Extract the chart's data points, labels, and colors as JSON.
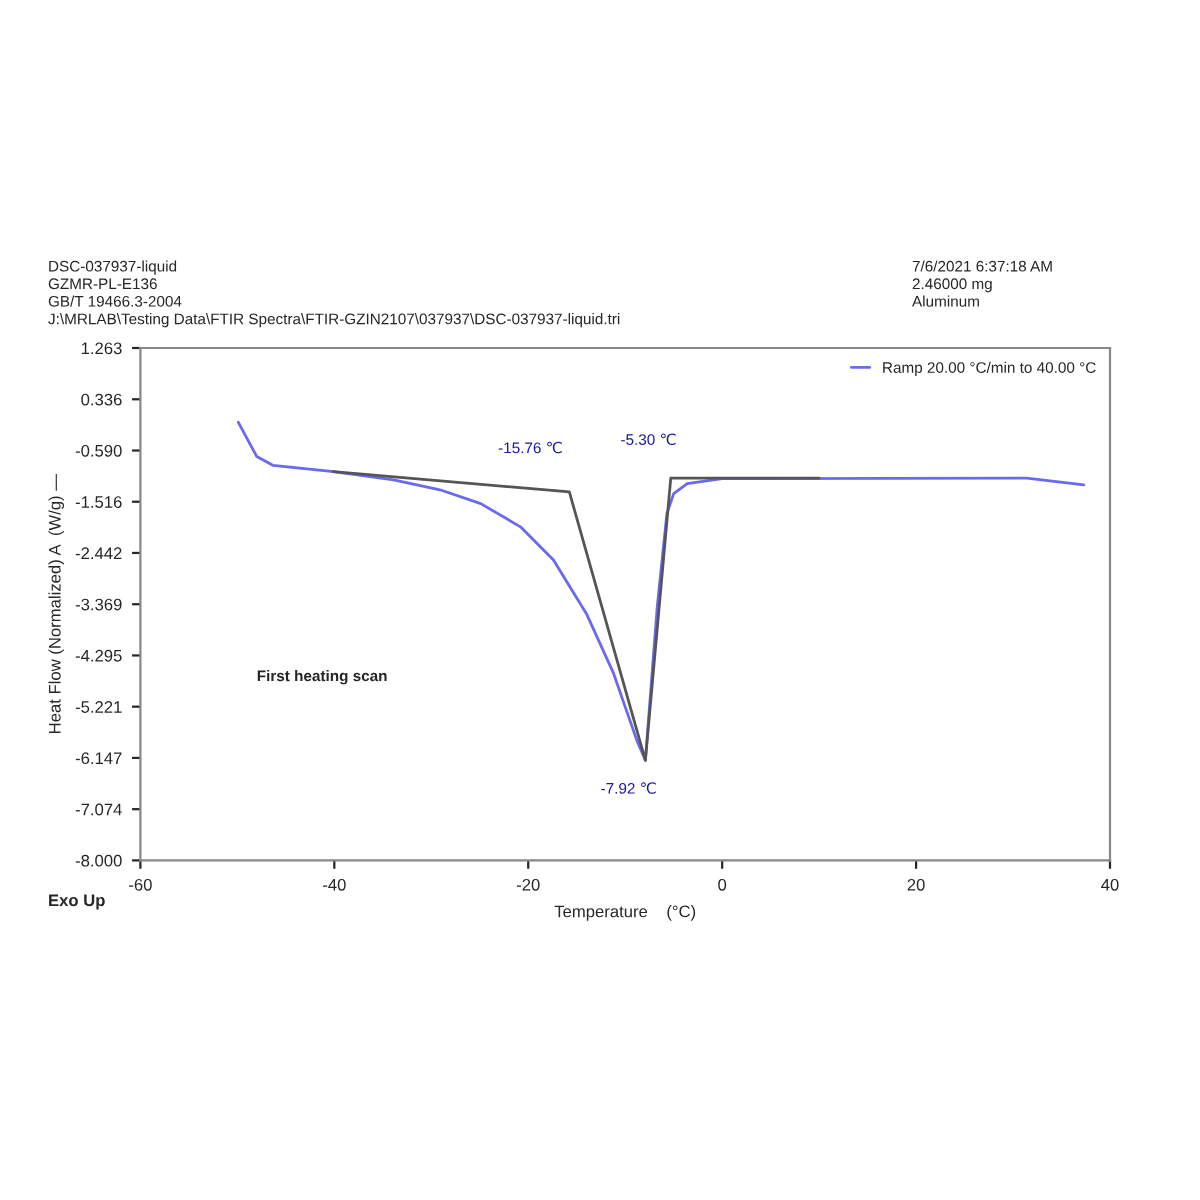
{
  "chart_data": {
    "type": "line",
    "title": "DSC-037937-liquid\nGZMR-PL-E136\nGB/T 19466.3-2004\nJ:\\MRLAB\\Testing Data\\FTIR Spectra\\FTIR-GZIN2107\\037937\\DSC-037937-liquid.tri",
    "subtitle": "7/6/2021 6:37:18 AM\n2.46000 mg\nAluminum",
    "xlabel": "Temperature    (°C)",
    "ylabel": "Heat Flow (Normalized) A  (W/g) —",
    "series": [
      {
        "name": "Ramp 20.00 °C/min to 40.00 °C",
        "color": "#6a6af0",
        "x": [
          -49.9,
          -48.0,
          -46.3,
          -40.1,
          -33.9,
          -29.1,
          -24.9,
          -20.8,
          -17.4,
          -14.0,
          -11.2,
          -8.8,
          -7.92,
          -6.7,
          -5.7,
          -5.0,
          -3.6,
          0.0,
          31.4,
          37.3
        ],
        "values": [
          -0.08,
          -0.7,
          -0.86,
          -0.97,
          -1.12,
          -1.3,
          -1.55,
          -1.97,
          -2.57,
          -3.54,
          -4.62,
          -5.83,
          -6.19,
          -3.42,
          -1.73,
          -1.37,
          -1.19,
          -1.1,
          -1.09,
          -1.21
        ]
      },
      {
        "color": "#555555",
        "x": [
          -40.1,
          -15.76,
          -7.92,
          -5.3,
          10.0
        ],
        "values": [
          -0.97,
          -1.34,
          -6.19,
          -1.09,
          -1.09
        ]
      }
    ],
    "annotations": [
      "First heating scan",
      "Exo Up",
      {
        "text": "-15.76 ℃",
        "x": -15.76,
        "y": -1.34
      },
      {
        "text": "-7.92 ℃",
        "x": -7.92,
        "y": -6.19
      },
      {
        "text": "-5.30 ℃",
        "x": -5.3,
        "y": -1.09
      }
    ],
    "xlim": [
      -60,
      40
    ],
    "xticks": [
      -60,
      -40,
      -20,
      0,
      20,
      40
    ],
    "ylim": [
      -8.0,
      1.263
    ],
    "yticks": [
      1.263,
      0.336,
      {
        "value": -0.59,
        "label": "-0.590"
      },
      -1.516,
      -2.442,
      -3.369,
      -4.295,
      -5.221,
      -6.147,
      -7.074,
      {
        "value": -8.0,
        "label": "-8.000"
      }
    ],
    "grid": false,
    "legend": "top right",
    "line_style": "solid",
    "marker": "none"
  }
}
